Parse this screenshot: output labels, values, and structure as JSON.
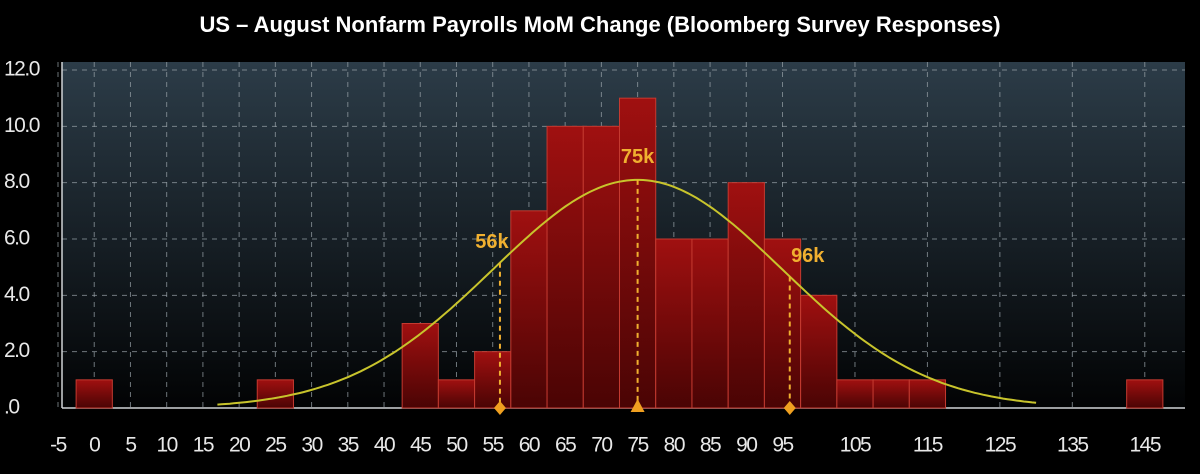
{
  "chart_data": {
    "type": "histogram",
    "title": "US – August Nonfarm Payrolls MoM Change (Bloomberg Survey Responses)",
    "bins": [
      -2.5,
      2.5,
      7.5,
      12.5,
      17.5,
      22.5,
      27.5,
      32.5,
      37.5,
      42.5,
      47.5,
      52.5,
      57.5,
      62.5,
      67.5,
      72.5,
      77.5,
      82.5,
      87.5,
      92.5,
      97.5,
      102.5,
      107.5,
      112.5,
      117.5,
      122.5,
      127.5,
      132.5,
      137.5,
      142.5,
      147.5
    ],
    "values": [
      1,
      0,
      0,
      0,
      0,
      1,
      0,
      0,
      0,
      3,
      1,
      2,
      7,
      10,
      10,
      11,
      6,
      6,
      8,
      6,
      4,
      1,
      1,
      1,
      0,
      0,
      0,
      0,
      0,
      1
    ],
    "color": "#8a0c0c",
    "xlim": [
      -5,
      150
    ],
    "xticks": [
      -5,
      0,
      5,
      10,
      15,
      20,
      25,
      30,
      35,
      40,
      45,
      50,
      55,
      60,
      65,
      70,
      75,
      80,
      85,
      90,
      95,
      105,
      115,
      125,
      135,
      145
    ],
    "ylim": [
      0,
      12
    ],
    "yticks": [
      {
        "value": 0,
        "label": ".0"
      },
      {
        "value": 2,
        "label": "2.0"
      },
      {
        "value": 4,
        "label": "4.0"
      },
      {
        "value": 6,
        "label": "6.0"
      },
      {
        "value": 8,
        "label": "8.0"
      },
      {
        "value": 10,
        "label": "10.0"
      },
      {
        "value": 12,
        "label": "12.0"
      }
    ],
    "grid": true,
    "normal_fit": {
      "mean": 75,
      "sd": 20,
      "peak": 8.1,
      "range": [
        17,
        130
      ],
      "color": "#c8c42c"
    },
    "annotations": [
      {
        "label": "56k",
        "x": 56,
        "marker": "diamond"
      },
      {
        "label": "75k",
        "x": 75,
        "marker": "triangle"
      },
      {
        "label": "96k",
        "x": 96,
        "marker": "diamond"
      }
    ]
  }
}
